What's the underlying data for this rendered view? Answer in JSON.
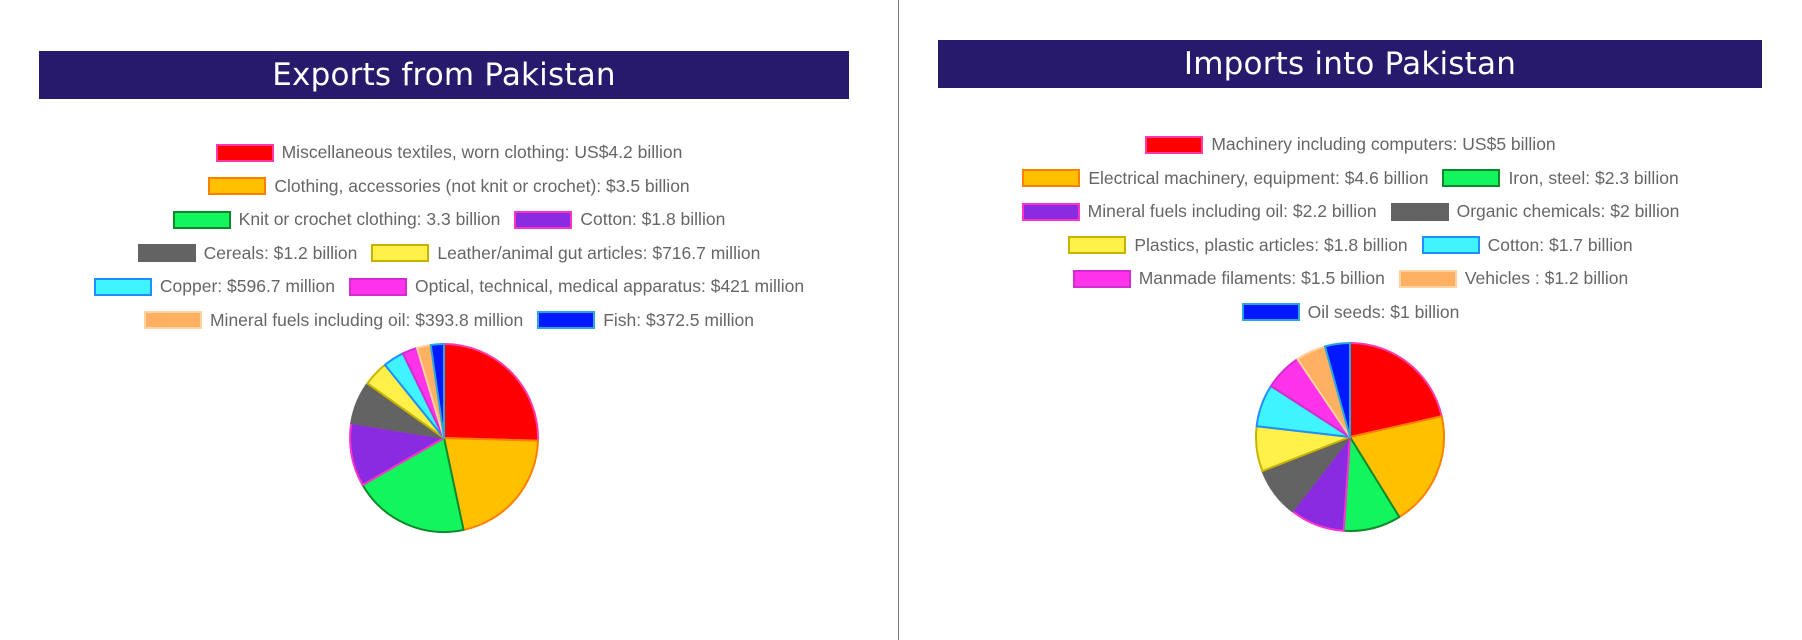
{
  "chart_data": [
    {
      "type": "pie",
      "title": "Exports from Pakistan",
      "unit": "billion US$",
      "slices": [
        {
          "label": "Miscellaneous textiles, worn clothing: US$4.2 billion",
          "value": 4.2,
          "fill": "#ff0000",
          "stroke": "#ff3aa8"
        },
        {
          "label": "Clothing, accessories (not knit or crochet): $3.5 billion",
          "value": 3.5,
          "fill": "#ffc000",
          "stroke": "#ff7f00"
        },
        {
          "label": "Knit or crochet clothing: 3.3 billion",
          "value": 3.3,
          "fill": "#13f55c",
          "stroke": "#0e8a2c"
        },
        {
          "label": "Cotton: $1.8 billion",
          "value": 1.8,
          "fill": "#8a2be2",
          "stroke": "#ff33cc"
        },
        {
          "label": "Cereals: $1.2 billion",
          "value": 1.2,
          "fill": "#636363",
          "stroke": "#636363"
        },
        {
          "label": "Leather/animal gut articles: $716.7 million",
          "value": 0.7167,
          "fill": "#fff04a",
          "stroke": "#c8b400"
        },
        {
          "label": "Copper: $596.7 million",
          "value": 0.5967,
          "fill": "#3ff3ff",
          "stroke": "#1f8fff"
        },
        {
          "label": "Optical, technical, medical apparatus: $421 million",
          "value": 0.421,
          "fill": "#ff33ea",
          "stroke": "#d22dd2"
        },
        {
          "label": "Mineral fuels including oil: $393.8 million",
          "value": 0.3938,
          "fill": "#ffb061",
          "stroke": "#ffd2a0"
        },
        {
          "label": "Fish: $372.5 million",
          "value": 0.3725,
          "fill": "#0019ff",
          "stroke": "#2aa7d8"
        }
      ],
      "legend_rows": [
        [
          0
        ],
        [
          1
        ],
        [
          2,
          3
        ],
        [
          4,
          5
        ],
        [
          6,
          7
        ],
        [
          8,
          9
        ]
      ]
    },
    {
      "type": "pie",
      "title": "Imports into Pakistan",
      "unit": "billion US$",
      "slices": [
        {
          "label": "Machinery including computers: US$5 billion",
          "value": 5,
          "fill": "#ff0000",
          "stroke": "#ff3aa8"
        },
        {
          "label": "Electrical machinery, equipment: $4.6 billion",
          "value": 4.6,
          "fill": "#ffc000",
          "stroke": "#ff7f00"
        },
        {
          "label": "Iron, steel: $2.3 billion",
          "value": 2.3,
          "fill": "#13f55c",
          "stroke": "#0e8a2c"
        },
        {
          "label": "Mineral fuels including oil: $2.2 billion",
          "value": 2.2,
          "fill": "#8a2be2",
          "stroke": "#ff33cc"
        },
        {
          "label": "Organic chemicals: $2 billion",
          "value": 2,
          "fill": "#636363",
          "stroke": "#636363"
        },
        {
          "label": "Plastics, plastic articles: $1.8 billion",
          "value": 1.8,
          "fill": "#fff04a",
          "stroke": "#c8b400"
        },
        {
          "label": "Cotton: $1.7 billion",
          "value": 1.7,
          "fill": "#3ff3ff",
          "stroke": "#1f8fff"
        },
        {
          "label": "Manmade filaments: $1.5 billion",
          "value": 1.5,
          "fill": "#ff33ea",
          "stroke": "#d22dd2"
        },
        {
          "label": "Vehicles : $1.2 billion",
          "value": 1.2,
          "fill": "#ffb061",
          "stroke": "#ffd2a0"
        },
        {
          "label": "Oil seeds: $1 billion",
          "value": 1,
          "fill": "#0019ff",
          "stroke": "#2aa7d8"
        }
      ],
      "legend_rows": [
        [
          0
        ],
        [
          1,
          2
        ],
        [
          3,
          4
        ],
        [
          5,
          6
        ],
        [
          7,
          8
        ],
        [
          9
        ]
      ]
    }
  ]
}
